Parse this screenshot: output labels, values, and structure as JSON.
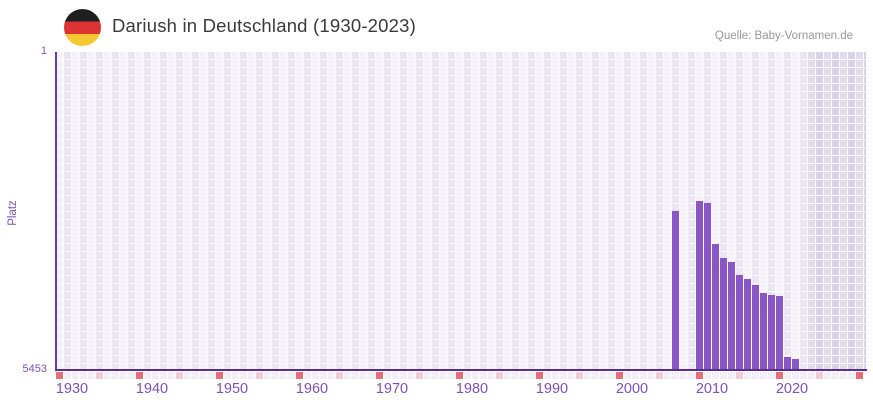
{
  "header": {
    "title": "Dariush in Deutschland (1930-2023)",
    "source": "Quelle: Baby-Vornamen.de"
  },
  "chart_data": {
    "type": "bar",
    "title": "Dariush in Deutschland (1930-2023)",
    "ylabel": "Platz",
    "xlabel": "",
    "grid": true,
    "legend": false,
    "y_axis": {
      "top_label": "1",
      "bottom_label": "5453",
      "min": 1,
      "max": 5453,
      "inverted": true
    },
    "x_axis": {
      "min": 1930,
      "max": 2023,
      "ticks": [
        1930,
        1940,
        1950,
        1960,
        1970,
        1980,
        1990,
        2000,
        2010,
        2020
      ]
    },
    "points": [
      {
        "year": 2007,
        "platz": 2727
      },
      {
        "year": 2010,
        "platz": 2556
      },
      {
        "year": 2011,
        "platz": 2590
      },
      {
        "year": 2012,
        "platz": 3293
      },
      {
        "year": 2013,
        "platz": 3533
      },
      {
        "year": 2014,
        "platz": 3601
      },
      {
        "year": 2015,
        "platz": 3824
      },
      {
        "year": 2016,
        "platz": 3893
      },
      {
        "year": 2017,
        "platz": 3995
      },
      {
        "year": 2018,
        "platz": 4133
      },
      {
        "year": 2019,
        "platz": 4167
      },
      {
        "year": 2020,
        "platz": 4184
      },
      {
        "year": 2021,
        "platz": 5230
      },
      {
        "year": 2022,
        "platz": 5264
      }
    ]
  },
  "colors": {
    "bar": "#8a55c5",
    "axis_line": "#5a2b91",
    "tick_text": "#7d53b3",
    "title_text": "#3a3a3a",
    "source_text": "#999999",
    "grid_light": "#f5f2fb",
    "grid_dark": "#eae5f5",
    "band_light": "#e1dbef",
    "band_dark": "#d8d1e9",
    "marker_default": "#f2edf6",
    "marker_half_decade": "#f2ccd5",
    "marker_decade": "#e36e76",
    "flag_black": "#1f1f1f",
    "flag_red": "#dd3333",
    "flag_gold": "#f5c833"
  }
}
